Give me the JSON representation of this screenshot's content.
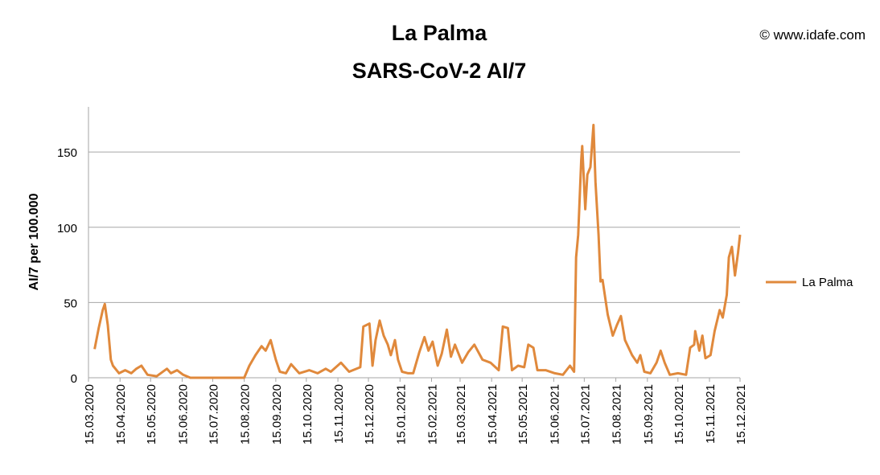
{
  "chart_data": {
    "type": "line",
    "title": "La Palma",
    "subtitle": "SARS-CoV-2 AI/7",
    "watermark": "© www.idafe.com",
    "y_label": "AI/7 per 100.000",
    "grid": true,
    "legend": "right",
    "xlim": [
      "15.03.2020",
      "15.12.2021"
    ],
    "xticks": [
      "15.03.2020",
      "15.04.2020",
      "15.05.2020",
      "15.06.2020",
      "15.07.2020",
      "15.08.2020",
      "15.09.2020",
      "15.10.2020",
      "15.11.2020",
      "15.12.2020",
      "15.01.2021",
      "15.02.2021",
      "15.03.2021",
      "15.04.2021",
      "15.05.2021",
      "15.06.2021",
      "15.07.2021",
      "15.08.2021",
      "15.09.2021",
      "15.10.2021",
      "15.11.2021",
      "15.12.2021"
    ],
    "ylim": [
      0,
      180
    ],
    "yticks": [
      0,
      50,
      100,
      150
    ],
    "x": [
      "21.03.2020",
      "25.03.2020",
      "29.03.2020",
      "31.03.2020",
      "03.04.2020",
      "06.04.2020",
      "08.04.2020",
      "14.04.2020",
      "20.04.2020",
      "26.04.2020",
      "01.05.2020",
      "06.05.2020",
      "12.05.2020",
      "21.05.2020",
      "31.05.2020",
      "04.06.2020",
      "10.06.2020",
      "16.06.2020",
      "23.06.2020",
      "15.07.2020",
      "15.08.2020",
      "20.08.2020",
      "26.08.2020",
      "01.09.2020",
      "05.09.2020",
      "10.09.2020",
      "15.09.2020",
      "19.09.2020",
      "25.09.2020",
      "30.09.2020",
      "08.10.2020",
      "18.10.2020",
      "26.10.2020",
      "03.11.2020",
      "08.11.2020",
      "18.11.2020",
      "26.11.2020",
      "07.12.2020",
      "10.12.2020",
      "16.12.2020",
      "19.12.2020",
      "22.12.2020",
      "26.12.2020",
      "30.12.2020",
      "03.01.2021",
      "06.01.2021",
      "10.01.2021",
      "13.01.2021",
      "17.01.2021",
      "23.01.2021",
      "28.01.2021",
      "03.02.2021",
      "08.02.2021",
      "12.02.2021",
      "16.02.2021",
      "21.02.2021",
      "25.02.2021",
      "02.03.2021",
      "06.03.2021",
      "10.03.2021",
      "17.03.2021",
      "23.03.2021",
      "29.03.2021",
      "06.04.2021",
      "14.04.2021",
      "22.04.2021",
      "26.04.2021",
      "01.05.2021",
      "05.05.2021",
      "11.05.2021",
      "17.05.2021",
      "21.05.2021",
      "26.05.2021",
      "30.05.2021",
      "07.06.2021",
      "16.06.2021",
      "24.06.2021",
      "01.07.2021",
      "05.07.2021",
      "07.07.2021",
      "09.07.2021",
      "12.07.2021",
      "13.07.2021",
      "16.07.2021",
      "18.07.2021",
      "21.07.2021",
      "24.07.2021",
      "26.07.2021",
      "29.07.2021",
      "31.07.2021",
      "02.08.2021",
      "07.08.2021",
      "12.08.2021",
      "16.08.2021",
      "20.08.2021",
      "24.08.2021",
      "31.08.2021",
      "05.09.2021",
      "08.09.2021",
      "12.09.2021",
      "18.09.2021",
      "24.09.2021",
      "28.09.2021",
      "02.10.2021",
      "07.10.2021",
      "15.10.2021",
      "23.10.2021",
      "27.10.2021",
      "31.10.2021",
      "01.11.2021",
      "05.11.2021",
      "08.11.2021",
      "11.11.2021",
      "16.11.2021",
      "20.11.2021",
      "25.11.2021",
      "28.11.2021",
      "02.12.2021",
      "04.12.2021",
      "07.12.2021",
      "10.12.2021",
      "13.12.2021",
      "15.12.2021"
    ],
    "series": [
      {
        "name": "La Palma",
        "color": "#e0893c",
        "values": [
          19,
          33,
          45,
          49,
          35,
          12,
          8,
          3,
          5,
          3,
          6,
          8,
          2,
          1,
          6,
          3,
          5,
          2,
          0,
          0,
          0,
          8,
          15,
          21,
          18,
          25,
          12,
          4,
          3,
          9,
          3,
          5,
          3,
          6,
          4,
          10,
          4,
          7,
          34,
          36,
          8,
          25,
          38,
          28,
          22,
          15,
          25,
          12,
          4,
          3,
          3,
          17,
          27,
          18,
          24,
          8,
          16,
          32,
          14,
          22,
          10,
          17,
          22,
          12,
          10,
          5,
          34,
          33,
          5,
          8,
          7,
          22,
          20,
          5,
          5,
          3,
          2,
          8,
          4,
          80,
          95,
          145,
          154,
          112,
          135,
          140,
          168,
          130,
          95,
          64,
          65,
          42,
          28,
          35,
          41,
          25,
          15,
          10,
          15,
          4,
          3,
          10,
          18,
          10,
          2,
          3,
          2,
          20,
          22,
          31,
          18,
          28,
          13,
          15,
          31,
          45,
          40,
          55,
          80,
          87,
          68,
          83,
          95
        ]
      }
    ]
  }
}
